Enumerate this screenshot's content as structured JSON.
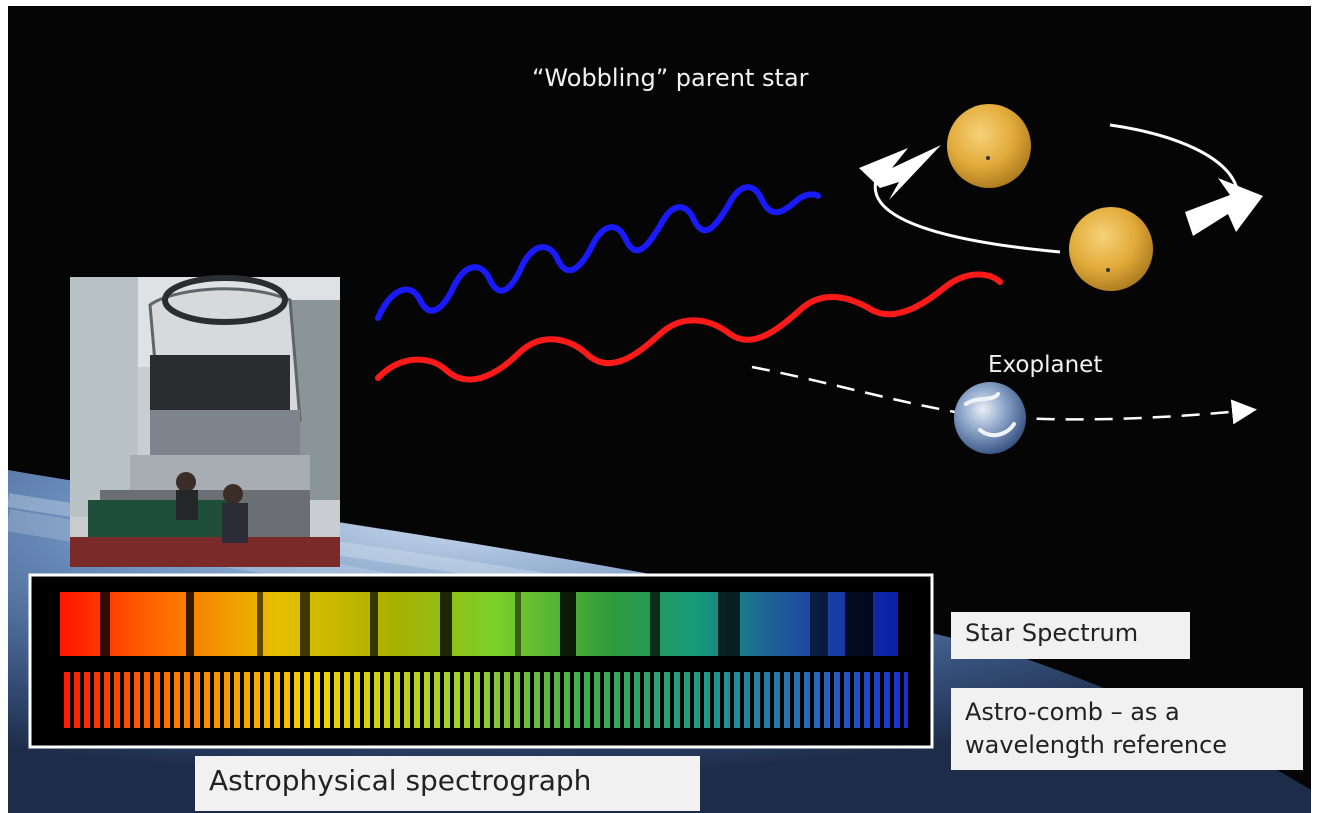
{
  "header": {
    "title": ""
  },
  "labels": {
    "wobbling_star": "“Wobbling” parent star",
    "exoplanet": "Exoplanet",
    "star_spectrum": "Star Spectrum",
    "astro_comb_line1": "Astro-comb – as a",
    "astro_comb_line2": "wavelength reference",
    "spectrograph": "Astrophysical spectrograph"
  },
  "colors": {
    "space": "#050505",
    "blueshift_wave": "#1a1aff",
    "redshift_wave": "#ff1a1a",
    "star": "#e8b23a",
    "orbit": "#ffffff",
    "label_box": "#f1f1f1"
  },
  "icons": {
    "star": "star-sphere-icon",
    "planet": "earth-globe-icon",
    "telescope": "telescope-photo"
  }
}
